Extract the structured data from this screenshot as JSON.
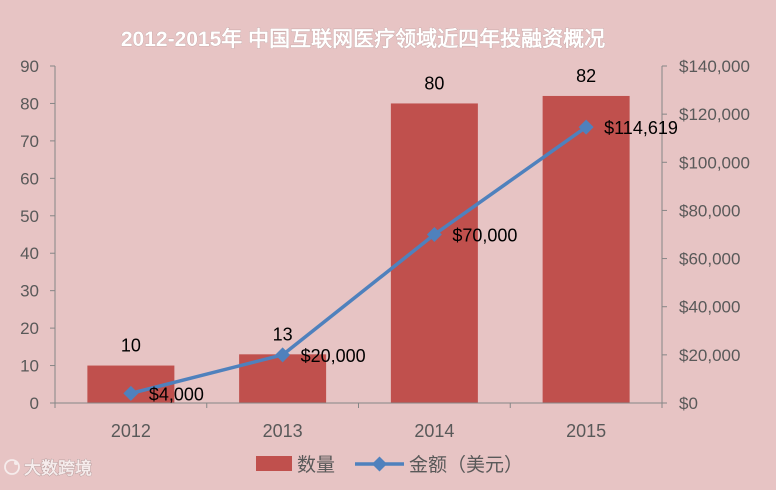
{
  "chart_data": {
    "type": "bar",
    "title": "2012-2015年 中国互联网医疗领域近四年投融资概况",
    "categories": [
      "2012",
      "2013",
      "2014",
      "2015"
    ],
    "series": [
      {
        "name": "数量",
        "type": "bar",
        "axis": "left",
        "values": [
          10,
          13,
          80,
          82
        ],
        "labels": [
          "10",
          "13",
          "80",
          "82"
        ]
      },
      {
        "name": "金额（美元）",
        "type": "line",
        "axis": "right",
        "marker": "diamond",
        "values": [
          4000,
          20000,
          70000,
          114619
        ],
        "labels": [
          "$4,000",
          "$20,000",
          "$70,000",
          "$114,619"
        ]
      }
    ],
    "y_left": {
      "min": 0,
      "max": 90,
      "step": 10,
      "tick_labels": [
        "0",
        "10",
        "20",
        "30",
        "40",
        "50",
        "60",
        "70",
        "80",
        "90"
      ]
    },
    "y_right": {
      "min": 0,
      "max": 140000,
      "step": 20000,
      "tick_labels": [
        "$0",
        "$20,000",
        "$40,000",
        "$60,000",
        "$80,000",
        "$100,000",
        "$120,000",
        "$140,000"
      ]
    },
    "grid": false,
    "legend": "bottom-center"
  },
  "colors": {
    "background": "#E7C4C4",
    "bar": "#C0504D",
    "line": "#4F81BD",
    "title": "#FFFFFF",
    "axis_text": "#595959",
    "axis_line": "#868686",
    "label_text": "#000000",
    "watermark": "#F6ECEC",
    "watermark_outline": "#9C8585"
  },
  "watermark": {
    "text": "大数跨境",
    "icon": "logo-icon"
  }
}
